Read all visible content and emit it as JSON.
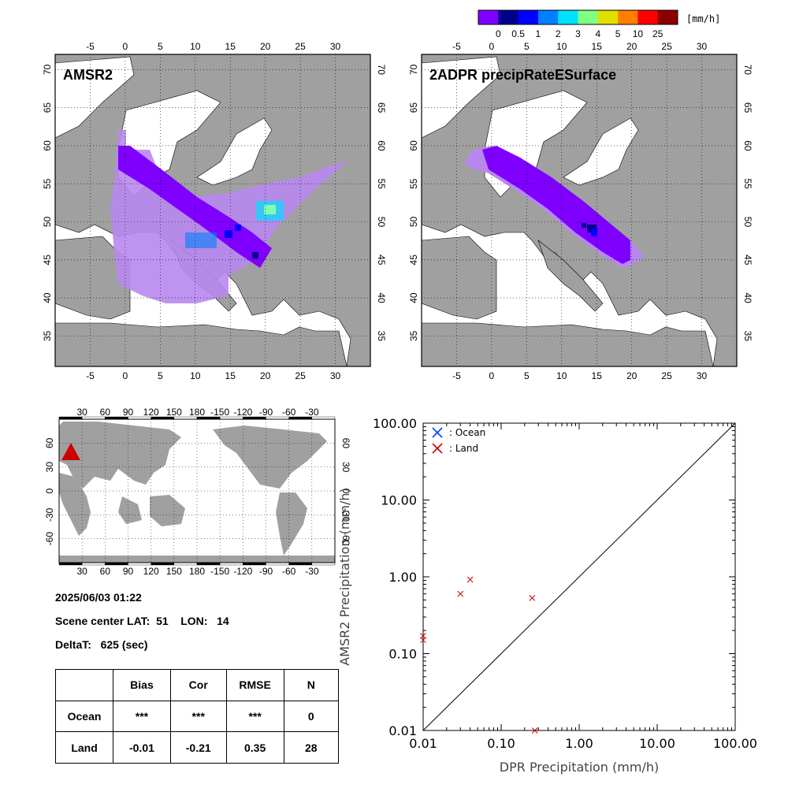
{
  "colorbar": {
    "unit": "[mm/h]",
    "labels": [
      "0",
      "0.5",
      "1",
      "2",
      "3",
      "4",
      "5",
      "10",
      "25"
    ],
    "colors": [
      "#8000ff",
      "#00008c",
      "#0000ff",
      "#0080ff",
      "#00e0ff",
      "#80ff80",
      "#e0e000",
      "#ff8000",
      "#ff0000",
      "#8c0000"
    ]
  },
  "maps": {
    "amsr2": {
      "title": "AMSR2",
      "lon_ticks": [
        "-5",
        "0",
        "5",
        "10",
        "15",
        "20",
        "25",
        "30"
      ],
      "lat_ticks": [
        "70",
        "65",
        "60",
        "55",
        "50",
        "45",
        "40",
        "35"
      ]
    },
    "dpr": {
      "title": "2ADPR precipRateESurface",
      "lon_ticks": [
        "-5",
        "0",
        "5",
        "10",
        "15",
        "20",
        "25",
        "30"
      ],
      "lat_ticks": [
        "70",
        "65",
        "60",
        "55",
        "50",
        "45",
        "40",
        "35"
      ]
    }
  },
  "world_map": {
    "lon_ticks": [
      "30",
      "60",
      "90",
      "120",
      "150",
      "180",
      "-150",
      "-120",
      "-90",
      "-60",
      "-30"
    ],
    "lat_ticks": [
      "60",
      "30",
      "0",
      "-30",
      "-60"
    ],
    "marker_color": "#cc0000"
  },
  "info": {
    "datetime": "2025/06/03 01:22",
    "scene_center": "Scene center LAT:  51    LON:   14",
    "delta_t": "DeltaT:   625 (sec)"
  },
  "stats_table": {
    "headers": [
      "",
      "Bias",
      "Cor",
      "RMSE",
      "N"
    ],
    "rows": [
      [
        "Ocean",
        "***",
        "***",
        "***",
        "0"
      ],
      [
        "Land",
        "-0.01",
        "-0.21",
        "0.35",
        "28"
      ]
    ]
  },
  "chart_data": {
    "type": "scatter",
    "xlabel": "DPR Precipitation (mm/h)",
    "ylabel": "AMSR2 Precipitation (mm/h)",
    "xscale": "log",
    "yscale": "log",
    "xlim": [
      0.01,
      100
    ],
    "ylim": [
      0.01,
      100
    ],
    "x_ticks": [
      "0.01",
      "0.10",
      "1.00",
      "10.00",
      "100.00"
    ],
    "y_ticks": [
      "0.01",
      "0.10",
      "1.00",
      "10.00",
      "100.00"
    ],
    "legend": [
      {
        "label": ": Ocean",
        "color": "#0040ff"
      },
      {
        "label": ": Land",
        "color": "#cc0000"
      }
    ],
    "legend_position": "top-left",
    "series": [
      {
        "name": "Ocean",
        "color": "#0040ff",
        "x": [],
        "y": []
      },
      {
        "name": "Land",
        "color": "#cc0000",
        "x": [
          0.01,
          0.01,
          0.03,
          0.04,
          0.25,
          0.27
        ],
        "y": [
          0.17,
          0.15,
          0.6,
          0.92,
          0.53,
          0.01
        ]
      }
    ],
    "reference_line": "1:1"
  }
}
